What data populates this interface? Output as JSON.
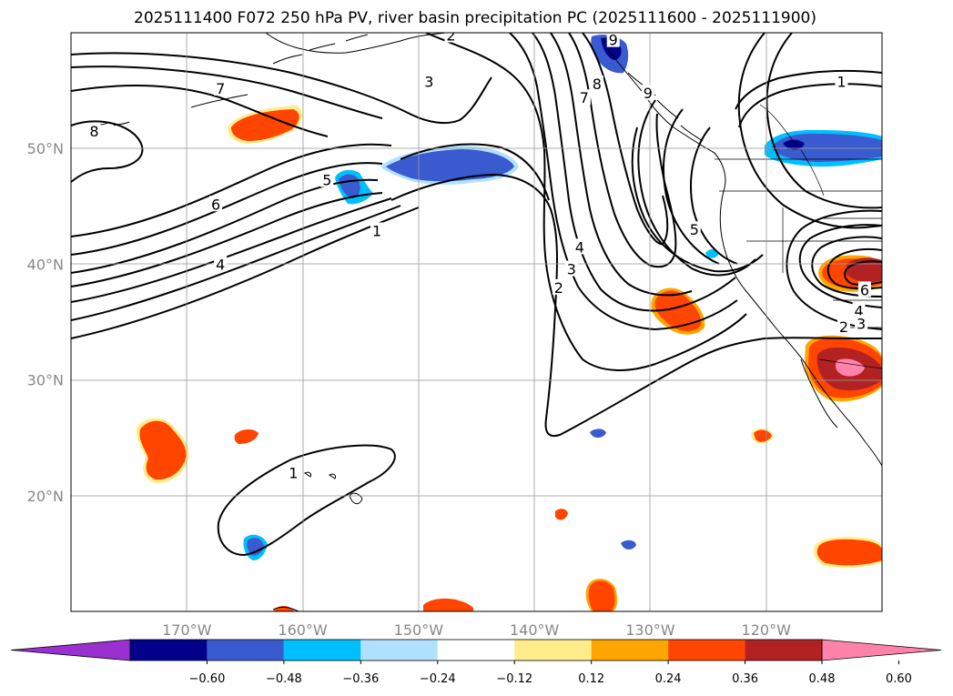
{
  "title": "2025111400 F072 250 hPa PV, river basin precipitation PC (2025111600 - 2025111900)",
  "map": {
    "lon_range": [
      -180,
      -110
    ],
    "lat_range": [
      10,
      60
    ],
    "lat_ticks": [
      {
        "lat": 50,
        "label": "50°N"
      },
      {
        "lat": 40,
        "label": "40°N"
      },
      {
        "lat": 30,
        "label": "30°N"
      },
      {
        "lat": 20,
        "label": "20°N"
      }
    ],
    "lon_ticks": [
      {
        "lon": -170,
        "label": "170°W"
      },
      {
        "lon": -160,
        "label": "160°W"
      },
      {
        "lon": -150,
        "label": "150°W"
      },
      {
        "lon": -140,
        "label": "140°W"
      },
      {
        "lon": -130,
        "label": "130°W"
      },
      {
        "lon": -120,
        "label": "120°W"
      }
    ]
  },
  "colorbar": {
    "colors": [
      "#9b30d0",
      "#00008b",
      "#3a5bd0",
      "#00bfff",
      "#b0e2ff",
      "#ffffff",
      "#ffec8b",
      "#ffa500",
      "#ff4500",
      "#b22222",
      "#ff82ab"
    ],
    "tick_labels": [
      "−0.60",
      "−0.48",
      "−0.36",
      "−0.24",
      "−0.12",
      "0.12",
      "0.24",
      "0.36",
      "0.48",
      "0.60"
    ]
  },
  "contour_labels": [
    {
      "text": "7",
      "lon": -167.1,
      "lat": 55.2
    },
    {
      "text": "8",
      "lon": -178.0,
      "lat": 51.5
    },
    {
      "text": "6",
      "lon": -167.5,
      "lat": 45.2
    },
    {
      "text": "5",
      "lon": -157.9,
      "lat": 47.3
    },
    {
      "text": "4",
      "lon": -167.1,
      "lat": 40.0
    },
    {
      "text": "1",
      "lon": -153.6,
      "lat": 42.9
    },
    {
      "text": "3",
      "lon": -149.1,
      "lat": 55.8
    },
    {
      "text": "2",
      "lon": -147.2,
      "lat": 59.8
    },
    {
      "text": "4",
      "lon": -136.1,
      "lat": 41.5
    },
    {
      "text": "3",
      "lon": -136.8,
      "lat": 39.6
    },
    {
      "text": "2",
      "lon": -137.9,
      "lat": 38.0
    },
    {
      "text": "7",
      "lon": -135.7,
      "lat": 54.4
    },
    {
      "text": "8",
      "lon": -134.6,
      "lat": 55.6
    },
    {
      "text": "9",
      "lon": -133.2,
      "lat": 59.4
    },
    {
      "text": "9",
      "lon": -130.2,
      "lat": 54.8
    },
    {
      "text": "5",
      "lon": -126.2,
      "lat": 43.0
    },
    {
      "text": "1",
      "lon": -113.5,
      "lat": 55.8
    },
    {
      "text": "6",
      "lon": -111.5,
      "lat": 37.8
    },
    {
      "text": "4",
      "lon": -112.0,
      "lat": 36.0
    },
    {
      "text": "3",
      "lon": -111.8,
      "lat": 34.9
    },
    {
      "text": "2",
      "lon": -113.3,
      "lat": 34.6
    },
    {
      "text": "1",
      "lon": -160.8,
      "lat": 22.0
    }
  ]
}
